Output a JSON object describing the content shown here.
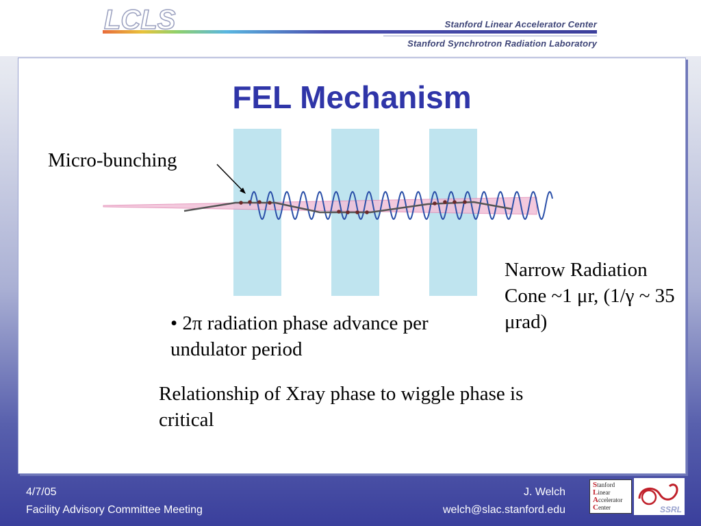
{
  "header": {
    "logo_text": "LCLS",
    "org_line1": "Stanford Linear Accelerator Center",
    "org_line2": "Stanford Synchrotron Radiation Laboratory"
  },
  "slide": {
    "title": "FEL Mechanism",
    "label_micro": "Micro-bunching",
    "label_narrow": "Narrow Radiation Cone ~1 μr, (1/γ ~ 35 μrad)",
    "bullet": "• 2π radiation phase advance per undulator period",
    "relationship": "Relationship of Xray phase to wiggle phase is critical"
  },
  "footer": {
    "date": "4/7/05",
    "meeting": "Facility Advisory Committee Meeting",
    "author": "J. Welch",
    "email": "welch@slac.stanford.edu"
  },
  "logos": {
    "slac_lines": [
      "Stanford",
      "Linear",
      "Accelerator",
      "Center"
    ],
    "ssrl_text": "SSRL"
  },
  "colors": {
    "title": "#2f35a8",
    "undulator_band": "#bfe4ef",
    "radiation_cone": "#e9a3c4",
    "wiggle": "#2a4fa8",
    "bunch_path": "#555555"
  }
}
